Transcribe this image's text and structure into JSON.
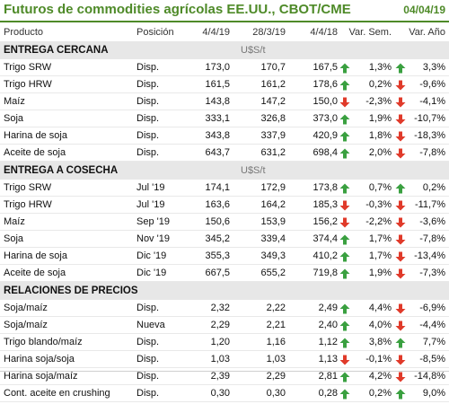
{
  "title": "Futuros de commodities agrícolas EE.UU., CBOT/CME",
  "date": "04/04/19",
  "columns": [
    "Producto",
    "Posición",
    "4/4/19",
    "28/3/19",
    "4/4/18",
    "Var. Sem.",
    "Var. Año"
  ],
  "colors": {
    "title": "#4e8a28",
    "up": "#3aa040",
    "down": "#e03a2a",
    "section_bg": "#e7e7e7"
  },
  "sections": [
    {
      "name": "ENTREGA CERCANA",
      "unit": "U$S/t",
      "rows": [
        {
          "producto": "Trigo SRW",
          "posicion": "Disp.",
          "v1": "173,0",
          "v2": "170,7",
          "v3": "167,5",
          "a1": "up",
          "sem": "1,3%",
          "a2": "up",
          "anio": "3,3%"
        },
        {
          "producto": "Trigo HRW",
          "posicion": "Disp.",
          "v1": "161,5",
          "v2": "161,2",
          "v3": "178,6",
          "a1": "up",
          "sem": "0,2%",
          "a2": "down",
          "anio": "-9,6%"
        },
        {
          "producto": "Maíz",
          "posicion": "Disp.",
          "v1": "143,8",
          "v2": "147,2",
          "v3": "150,0",
          "a1": "down",
          "sem": "-2,3%",
          "a2": "down",
          "anio": "-4,1%"
        },
        {
          "producto": "Soja",
          "posicion": "Disp.",
          "v1": "333,1",
          "v2": "326,8",
          "v3": "373,0",
          "a1": "up",
          "sem": "1,9%",
          "a2": "down",
          "anio": "-10,7%"
        },
        {
          "producto": "Harina de soja",
          "posicion": "Disp.",
          "v1": "343,8",
          "v2": "337,9",
          "v3": "420,9",
          "a1": "up",
          "sem": "1,8%",
          "a2": "down",
          "anio": "-18,3%"
        },
        {
          "producto": "Aceite de soja",
          "posicion": "Disp.",
          "v1": "643,7",
          "v2": "631,2",
          "v3": "698,4",
          "a1": "up",
          "sem": "2,0%",
          "a2": "down",
          "anio": "-7,8%"
        }
      ]
    },
    {
      "name": "ENTREGA A COSECHA",
      "unit": "U$S/t",
      "rows": [
        {
          "producto": "Trigo SRW",
          "posicion": "Jul '19",
          "v1": "174,1",
          "v2": "172,9",
          "v3": "173,8",
          "a1": "up",
          "sem": "0,7%",
          "a2": "up",
          "anio": "0,2%"
        },
        {
          "producto": "Trigo HRW",
          "posicion": "Jul '19",
          "v1": "163,6",
          "v2": "164,2",
          "v3": "185,3",
          "a1": "down",
          "sem": "-0,3%",
          "a2": "down",
          "anio": "-11,7%"
        },
        {
          "producto": "Maíz",
          "posicion": "Sep '19",
          "v1": "150,6",
          "v2": "153,9",
          "v3": "156,2",
          "a1": "down",
          "sem": "-2,2%",
          "a2": "down",
          "anio": "-3,6%"
        },
        {
          "producto": "Soja",
          "posicion": "Nov '19",
          "v1": "345,2",
          "v2": "339,4",
          "v3": "374,4",
          "a1": "up",
          "sem": "1,7%",
          "a2": "down",
          "anio": "-7,8%"
        },
        {
          "producto": "Harina de soja",
          "posicion": "Dic '19",
          "v1": "355,3",
          "v2": "349,3",
          "v3": "410,2",
          "a1": "up",
          "sem": "1,7%",
          "a2": "down",
          "anio": "-13,4%"
        },
        {
          "producto": "Aceite de soja",
          "posicion": "Dic '19",
          "v1": "667,5",
          "v2": "655,2",
          "v3": "719,8",
          "a1": "up",
          "sem": "1,9%",
          "a2": "down",
          "anio": "-7,3%"
        }
      ]
    },
    {
      "name": "RELACIONES DE PRECIOS",
      "unit": "",
      "rows": [
        {
          "producto": "Soja/maíz",
          "posicion": "Disp.",
          "v1": "2,32",
          "v2": "2,22",
          "v3": "2,49",
          "a1": "up",
          "sem": "4,4%",
          "a2": "down",
          "anio": "-6,9%"
        },
        {
          "producto": "Soja/maíz",
          "posicion": "Nueva",
          "v1": "2,29",
          "v2": "2,21",
          "v3": "2,40",
          "a1": "up",
          "sem": "4,0%",
          "a2": "down",
          "anio": "-4,4%"
        },
        {
          "producto": "Trigo blando/maíz",
          "posicion": "Disp.",
          "v1": "1,20",
          "v2": "1,16",
          "v3": "1,12",
          "a1": "up",
          "sem": "3,8%",
          "a2": "up",
          "anio": "7,7%"
        },
        {
          "producto": "Harina soja/soja",
          "posicion": "Disp.",
          "v1": "1,03",
          "v2": "1,03",
          "v3": "1,13",
          "a1": "down",
          "sem": "-0,1%",
          "a2": "down",
          "anio": "-8,5%"
        },
        {
          "producto": "Harina soja/maíz",
          "posicion": "Disp.",
          "v1": "2,39",
          "v2": "2,29",
          "v3": "2,81",
          "a1": "up",
          "sem": "4,2%",
          "a2": "down",
          "anio": "-14,8%"
        },
        {
          "producto": "Cont. aceite en crushing",
          "posicion": "Disp.",
          "v1": "0,30",
          "v2": "0,30",
          "v3": "0,28",
          "a1": "up",
          "sem": "0,2%",
          "a2": "up",
          "anio": "9,0%"
        }
      ]
    }
  ]
}
